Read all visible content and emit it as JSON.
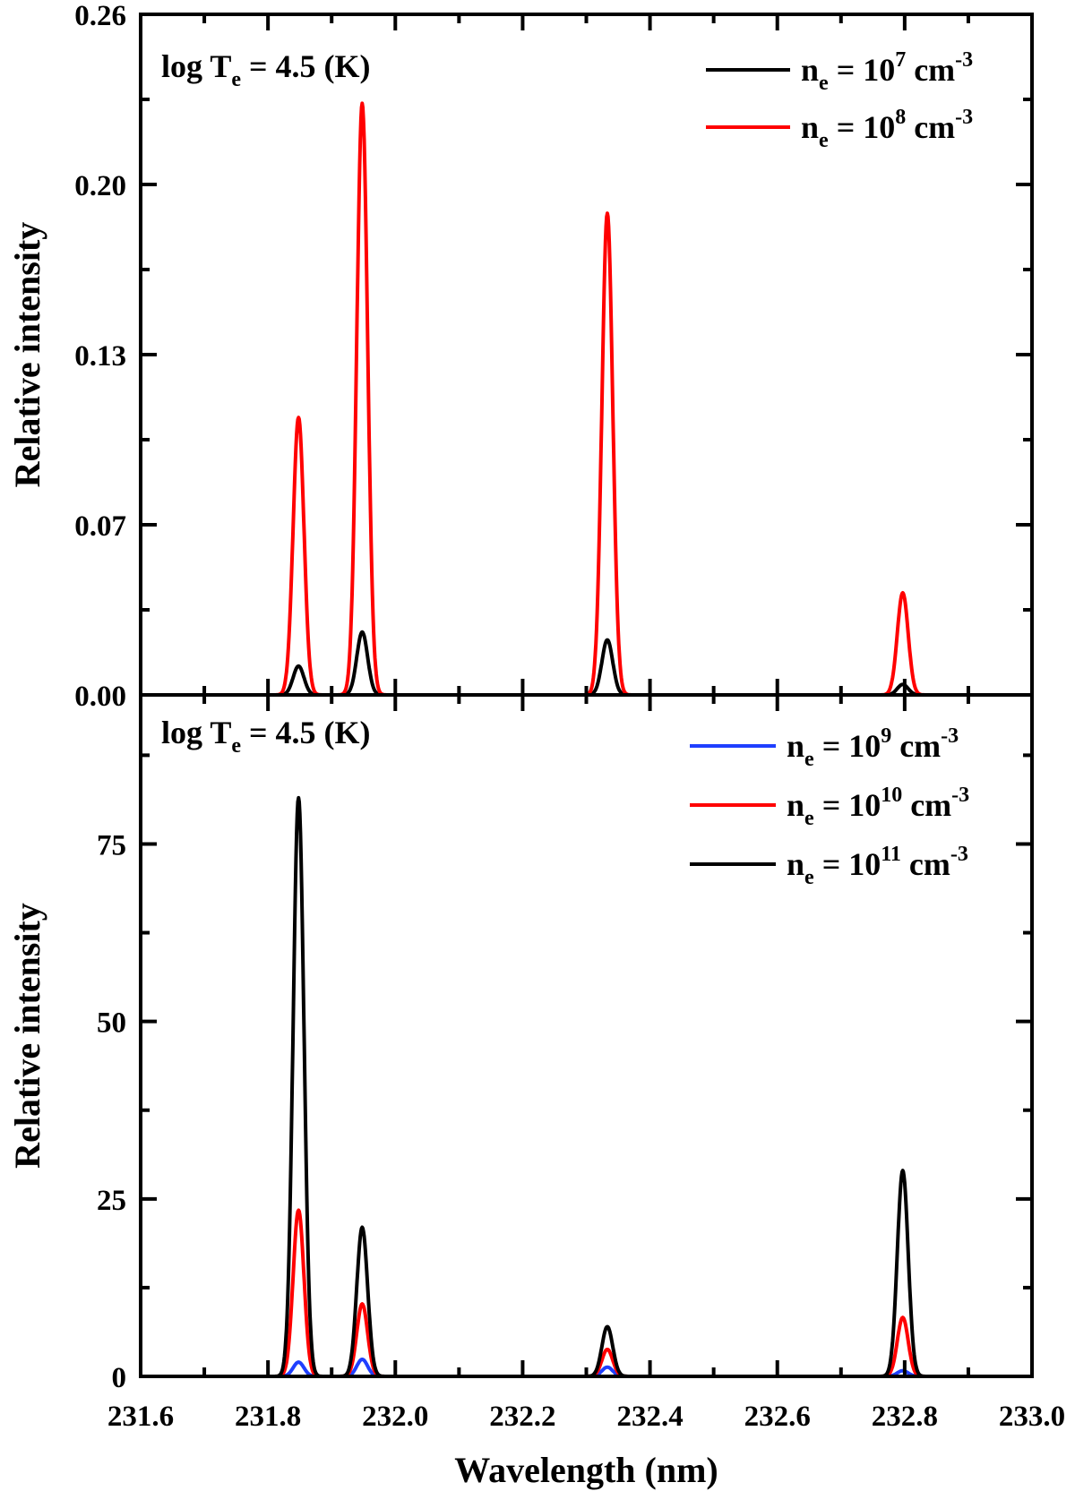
{
  "chart_data": [
    {
      "type": "line",
      "xlim": [
        231.6,
        233.0
      ],
      "ylim": [
        0,
        0.26
      ],
      "yticks": [
        0,
        0.065,
        0.13,
        0.195,
        0.26
      ],
      "ytick_labels": [
        "0.00",
        "0.07",
        "0.13",
        "0.20",
        "0.26"
      ],
      "ylabel": "Relative intensity",
      "annotation": {
        "pre": "log T",
        "sub": "e",
        "post": " = 4.5 (K)"
      },
      "legend_position": "top-right",
      "series": [
        {
          "name": {
            "base": "n",
            "sub": "e",
            "mid": " = 10",
            "sup": "7",
            "unit": " cm",
            "unitsup": "-3"
          },
          "color": "#000000",
          "peaks": [
            {
              "x": 231.848,
              "y": 0.011
            },
            {
              "x": 231.948,
              "y": 0.024
            },
            {
              "x": 232.333,
              "y": 0.021
            },
            {
              "x": 232.797,
              "y": 0.004
            }
          ]
        },
        {
          "name": {
            "base": "n",
            "sub": "e",
            "mid": " = 10",
            "sup": "8",
            "unit": " cm",
            "unitsup": "-3"
          },
          "color": "#ff0000",
          "peaks": [
            {
              "x": 231.848,
              "y": 0.106
            },
            {
              "x": 231.948,
              "y": 0.226
            },
            {
              "x": 232.333,
              "y": 0.184
            },
            {
              "x": 232.797,
              "y": 0.039
            }
          ]
        }
      ]
    },
    {
      "type": "line",
      "xlim": [
        231.6,
        233.0
      ],
      "ylim": [
        0,
        96
      ],
      "xticks": [
        231.6,
        231.8,
        232.0,
        232.2,
        232.4,
        232.6,
        232.8,
        233.0
      ],
      "xtick_labels": [
        "231.6",
        "231.8",
        "232.0",
        "232.2",
        "232.4",
        "232.6",
        "232.8",
        "233.0"
      ],
      "yticks": [
        0,
        25,
        50,
        75
      ],
      "ytick_labels": [
        "0",
        "25",
        "50",
        "75"
      ],
      "xlabel": "Wavelength (nm)",
      "ylabel": "Relative intensity",
      "annotation": {
        "pre": "log T",
        "sub": "e",
        "post": " = 4.5 (K)"
      },
      "legend_position": "top-right",
      "series": [
        {
          "name": {
            "base": "n",
            "sub": "e",
            "mid": " = 10",
            "sup": "9",
            "unit": " cm",
            "unitsup": "-3"
          },
          "color": "#1f3fff",
          "peaks": [
            {
              "x": 231.848,
              "y": 2.0
            },
            {
              "x": 231.948,
              "y": 2.4
            },
            {
              "x": 232.333,
              "y": 1.3
            },
            {
              "x": 232.797,
              "y": 0.8
            }
          ]
        },
        {
          "name": {
            "base": "n",
            "sub": "e",
            "mid": " = 10",
            "sup": "10",
            "unit": " cm",
            "unitsup": "-3"
          },
          "color": "#ff0000",
          "peaks": [
            {
              "x": 231.848,
              "y": 23.4
            },
            {
              "x": 231.948,
              "y": 10.2
            },
            {
              "x": 232.333,
              "y": 3.8
            },
            {
              "x": 232.797,
              "y": 8.3
            }
          ]
        },
        {
          "name": {
            "base": "n",
            "sub": "e",
            "mid": " = 10",
            "sup": "11",
            "unit": " cm",
            "unitsup": "-3"
          },
          "color": "#000000",
          "peaks": [
            {
              "x": 231.848,
              "y": 81.5
            },
            {
              "x": 231.948,
              "y": 21.0
            },
            {
              "x": 232.333,
              "y": 7.0
            },
            {
              "x": 232.797,
              "y": 29.0
            }
          ]
        }
      ]
    }
  ]
}
